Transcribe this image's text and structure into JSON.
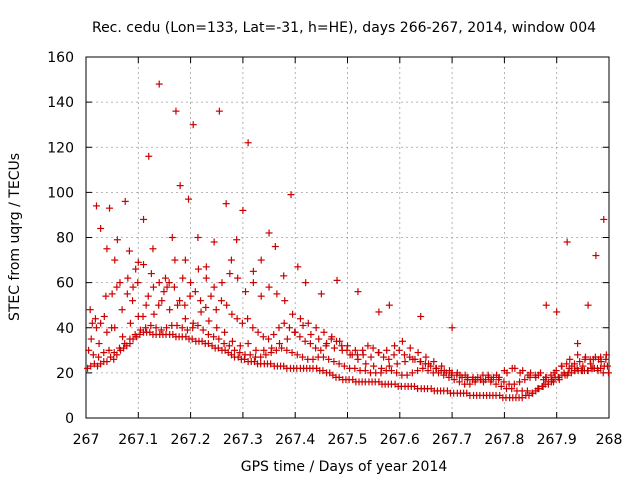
{
  "chart_data": {
    "type": "scatter",
    "title": "Rec. cedu (Lon=133, Lat=-31, h=HE), days 266-267, 2014, window 004",
    "xlabel": "GPS time / Days of year 2014",
    "ylabel": "STEC from uqrg / TECUs",
    "xlim": [
      267,
      268
    ],
    "ylim": [
      0,
      160
    ],
    "x_ticks": [
      267,
      267.1,
      267.2,
      267.3,
      267.4,
      267.5,
      267.6,
      267.7,
      267.8,
      267.9,
      268
    ],
    "x_tick_labels": [
      "267",
      "267.1",
      "267.2",
      "267.3",
      "267.4",
      "267.5",
      "267.6",
      "267.7",
      "267.8",
      "267.9",
      "268"
    ],
    "y_ticks": [
      0,
      20,
      40,
      60,
      80,
      100,
      120,
      140,
      160
    ],
    "y_tick_labels": [
      "0",
      "20",
      "40",
      "60",
      "80",
      "100",
      "120",
      "140",
      "160"
    ],
    "grid": true,
    "marker": "plus",
    "color": "#cc0000",
    "series": [
      {
        "x": [
          267.003,
          267.009,
          267.016,
          267.022,
          267.028,
          267.034,
          267.04,
          267.047,
          267.053,
          267.059,
          267.066,
          267.072,
          267.078,
          267.084,
          267.09,
          267.097,
          267.103,
          267.11,
          267.116,
          267.122,
          267.128,
          267.134,
          267.141,
          267.147,
          267.153,
          267.16,
          267.166,
          267.172,
          267.178,
          267.184,
          267.191,
          267.197,
          267.203,
          267.21,
          267.216,
          267.222,
          267.228,
          267.234,
          267.241,
          267.247,
          267.253,
          267.26,
          267.266,
          267.272,
          267.278,
          267.284,
          267.291,
          267.297,
          267.303,
          267.31,
          267.316,
          267.322,
          267.328,
          267.334,
          267.341,
          267.347,
          267.353,
          267.36,
          267.366,
          267.372,
          267.378,
          267.384,
          267.391,
          267.397,
          267.403,
          267.41,
          267.416,
          267.422,
          267.428,
          267.434,
          267.441,
          267.447,
          267.453,
          267.46,
          267.466,
          267.472,
          267.478,
          267.484,
          267.491,
          267.497,
          267.503,
          267.51,
          267.516,
          267.522,
          267.528,
          267.534,
          267.541,
          267.547,
          267.553,
          267.56,
          267.566,
          267.572,
          267.578,
          267.584,
          267.591,
          267.597,
          267.603,
          267.61,
          267.616,
          267.622,
          267.628,
          267.634,
          267.641,
          267.647,
          267.653,
          267.66,
          267.666,
          267.672,
          267.678,
          267.684,
          267.691,
          267.697,
          267.703,
          267.71,
          267.716,
          267.722,
          267.728,
          267.734,
          267.741,
          267.747,
          267.753,
          267.76,
          267.766,
          267.772,
          267.778,
          267.784,
          267.791,
          267.797,
          267.803,
          267.81,
          267.816,
          267.822,
          267.828,
          267.834,
          267.841,
          267.847,
          267.853,
          267.86,
          267.866,
          267.872,
          267.878,
          267.884,
          267.891,
          267.897,
          267.903,
          267.91,
          267.916,
          267.922,
          267.928,
          267.934,
          267.941,
          267.947,
          267.953,
          267.96,
          267.966,
          267.972,
          267.978,
          267.984,
          267.991,
          267.997
        ],
        "y": [
          22,
          23,
          24,
          23,
          24,
          25,
          25,
          27,
          26,
          28,
          30,
          31,
          32,
          33,
          35,
          36,
          37,
          38,
          38,
          38,
          37,
          37,
          37,
          37,
          37,
          37,
          37,
          36,
          36,
          36,
          36,
          35,
          35,
          34,
          34,
          34,
          33,
          33,
          32,
          31,
          31,
          30,
          30,
          29,
          28,
          27,
          27,
          26,
          26,
          25,
          25,
          25,
          24,
          24,
          24,
          24,
          24,
          23,
          23,
          23,
          23,
          22,
          22,
          22,
          22,
          22,
          22,
          22,
          22,
          22,
          22,
          21,
          21,
          20,
          20,
          19,
          18,
          18,
          17,
          17,
          17,
          17,
          16,
          16,
          16,
          16,
          16,
          16,
          16,
          16,
          15,
          15,
          15,
          15,
          15,
          14,
          14,
          14,
          14,
          14,
          14,
          13,
          13,
          13,
          13,
          13,
          12,
          12,
          12,
          12,
          12,
          11,
          11,
          11,
          11,
          11,
          11,
          10,
          10,
          10,
          10,
          10,
          10,
          10,
          10,
          10,
          10,
          9,
          9,
          9,
          9,
          9,
          9,
          9,
          10,
          10,
          11,
          12,
          13,
          14,
          15,
          16,
          17,
          18,
          18,
          19,
          19,
          20,
          20,
          21,
          21,
          21,
          21,
          21,
          22,
          22,
          22,
          22,
          23,
          23
        ]
      },
      {
        "x": [
          267.005,
          267.014,
          267.024,
          267.034,
          267.044,
          267.054,
          267.064,
          267.074,
          267.084,
          267.094,
          267.104,
          267.114,
          267.124,
          267.134,
          267.144,
          267.154,
          267.164,
          267.174,
          267.184,
          267.194,
          267.204,
          267.214,
          267.224,
          267.234,
          267.244,
          267.254,
          267.264,
          267.274,
          267.284,
          267.294,
          267.304,
          267.314,
          267.324,
          267.334,
          267.344,
          267.354,
          267.364,
          267.374,
          267.384,
          267.394,
          267.404,
          267.414,
          267.424,
          267.434,
          267.444,
          267.454,
          267.464,
          267.474,
          267.484,
          267.494,
          267.504,
          267.514,
          267.524,
          267.534,
          267.544,
          267.554,
          267.564,
          267.574,
          267.584,
          267.594,
          267.604,
          267.614,
          267.624,
          267.634,
          267.644,
          267.654,
          267.664,
          267.674,
          267.684,
          267.694,
          267.704,
          267.714,
          267.724,
          267.734,
          267.744,
          267.754,
          267.764,
          267.774,
          267.784,
          267.794,
          267.804,
          267.814,
          267.824,
          267.834,
          267.844,
          267.854,
          267.864,
          267.874,
          267.884,
          267.894,
          267.904,
          267.914,
          267.924,
          267.934,
          267.944,
          267.954,
          267.964,
          267.974,
          267.984,
          267.994
        ],
        "y": [
          30,
          28,
          27,
          29,
          30,
          29,
          31,
          33,
          35,
          37,
          39,
          40,
          41,
          40,
          39,
          40,
          41,
          41,
          40,
          39,
          40,
          41,
          39,
          37,
          36,
          35,
          33,
          32,
          30,
          29,
          28,
          28,
          27,
          27,
          28,
          29,
          30,
          31,
          30,
          29,
          28,
          27,
          26,
          26,
          27,
          27,
          26,
          25,
          24,
          23,
          22,
          22,
          21,
          21,
          20,
          20,
          20,
          21,
          21,
          20,
          19,
          19,
          20,
          21,
          22,
          21,
          20,
          20,
          19,
          18,
          17,
          16,
          15,
          15,
          16,
          17,
          17,
          16,
          15,
          14,
          13,
          13,
          12,
          12,
          12,
          11,
          13,
          14,
          15,
          16,
          18,
          20,
          22,
          24,
          25,
          26,
          26,
          27,
          27,
          26
        ]
      },
      {
        "x": [
          267.01,
          267.025,
          267.04,
          267.055,
          267.07,
          267.085,
          267.1,
          267.115,
          267.13,
          267.145,
          267.16,
          267.175,
          267.19,
          267.205,
          267.22,
          267.235,
          267.25,
          267.265,
          267.28,
          267.295,
          267.31,
          267.325,
          267.34,
          267.355,
          267.37,
          267.385,
          267.4,
          267.415,
          267.43,
          267.445,
          267.46,
          267.475,
          267.49,
          267.505,
          267.52,
          267.535,
          267.55,
          267.565,
          267.58,
          267.595,
          267.61,
          267.625,
          267.64,
          267.655,
          267.67,
          267.685,
          267.7,
          267.715,
          267.73,
          267.745,
          267.76,
          267.775,
          267.79,
          267.805,
          267.82,
          267.835,
          267.85,
          267.865,
          267.88,
          267.895,
          267.91,
          267.925,
          267.94,
          267.955,
          267.97,
          267.985
        ],
        "y": [
          35,
          33,
          38,
          40,
          36,
          42,
          45,
          50,
          46,
          52,
          48,
          50,
          44,
          42,
          47,
          43,
          40,
          38,
          34,
          32,
          33,
          30,
          30,
          31,
          33,
          35,
          38,
          41,
          37,
          35,
          33,
          31,
          30,
          28,
          26,
          24,
          23,
          22,
          23,
          24,
          25,
          26,
          25,
          24,
          22,
          21,
          20,
          19,
          18,
          17,
          16,
          17,
          18,
          20,
          22,
          21,
          20,
          19,
          18,
          20,
          23,
          26,
          28,
          27,
          26,
          25
        ]
      },
      {
        "x": [
          267.008,
          267.018,
          267.028,
          267.038,
          267.049,
          267.059,
          267.069,
          267.079,
          267.089,
          267.099,
          267.109,
          267.119,
          267.129,
          267.139,
          267.149,
          267.159,
          267.169,
          267.179,
          267.189,
          267.199,
          267.209,
          267.219,
          267.229,
          267.239,
          267.249,
          267.259,
          267.269,
          267.279,
          267.289,
          267.299,
          267.309,
          267.319,
          267.329,
          267.339,
          267.349,
          267.359,
          267.369,
          267.379,
          267.389,
          267.399,
          267.409,
          267.419,
          267.429,
          267.439,
          267.449,
          267.459,
          267.469,
          267.479,
          267.489,
          267.499,
          267.509,
          267.519,
          267.529,
          267.539,
          267.549,
          267.559,
          267.569,
          267.579,
          267.589,
          267.599,
          267.609,
          267.619,
          267.629,
          267.639,
          267.649,
          267.659,
          267.669,
          267.679,
          267.689,
          267.699,
          267.709,
          267.719,
          267.729,
          267.739,
          267.749,
          267.759,
          267.769,
          267.779,
          267.789,
          267.799,
          267.809,
          267.819,
          267.829,
          267.839,
          267.849,
          267.859,
          267.869,
          267.879,
          267.889,
          267.899,
          267.909,
          267.919,
          267.929,
          267.939,
          267.949,
          267.959,
          267.969,
          267.979,
          267.989,
          267.999
        ],
        "y": [
          48,
          44,
          42,
          54,
          40,
          58,
          48,
          55,
          52,
          60,
          45,
          54,
          58,
          50,
          56,
          60,
          58,
          52,
          50,
          54,
          56,
          52,
          49,
          54,
          48,
          52,
          50,
          46,
          44,
          42,
          44,
          40,
          38,
          36,
          35,
          37,
          40,
          42,
          40,
          38,
          36,
          34,
          33,
          31,
          30,
          32,
          35,
          34,
          32,
          30,
          28,
          28,
          30,
          32,
          31,
          29,
          27,
          26,
          28,
          30,
          28,
          27,
          26,
          25,
          24,
          23,
          22,
          21,
          20,
          19,
          19,
          18,
          17,
          17,
          18,
          19,
          19,
          18,
          17,
          16,
          15,
          15,
          16,
          17,
          18,
          19,
          20,
          18,
          19,
          21,
          23,
          24,
          23,
          22,
          21,
          21,
          22,
          21,
          20,
          20
        ]
      },
      {
        "x": [
          267.012,
          267.02,
          267.035,
          267.05,
          267.065,
          267.08,
          267.095,
          267.11,
          267.125,
          267.14,
          267.155,
          267.17,
          267.185,
          267.2,
          267.215,
          267.23,
          267.245,
          267.26,
          267.275,
          267.29,
          267.305,
          267.32,
          267.335,
          267.35,
          267.365,
          267.38,
          267.395,
          267.41,
          267.425,
          267.44,
          267.455,
          267.47,
          267.485,
          267.5,
          267.515,
          267.53,
          267.545,
          267.56,
          267.575,
          267.59,
          267.605,
          267.62,
          267.635,
          267.65,
          267.665,
          267.68,
          267.695,
          267.71,
          267.725,
          267.74,
          267.755,
          267.77,
          267.785,
          267.8,
          267.815,
          267.83,
          267.845,
          267.86,
          267.875,
          267.89,
          267.905,
          267.92,
          267.935,
          267.95,
          267.965,
          267.98,
          267.995
        ],
        "y": [
          42,
          40,
          45,
          55,
          60,
          62,
          66,
          68,
          64,
          60,
          58,
          70,
          62,
          60,
          66,
          62,
          58,
          60,
          64,
          62,
          56,
          60,
          54,
          58,
          55,
          52,
          46,
          44,
          42,
          40,
          38,
          36,
          34,
          32,
          30,
          28,
          27,
          29,
          30,
          32,
          34,
          31,
          29,
          27,
          25,
          23,
          21,
          20,
          19,
          18,
          17,
          18,
          19,
          21,
          22,
          20,
          19,
          18,
          17,
          16,
          17,
          19,
          21,
          23,
          24,
          26,
          28
        ]
      },
      {
        "x": [
          267.02,
          267.028,
          267.04,
          267.045,
          267.055,
          267.06,
          267.075,
          267.083,
          267.09,
          267.1,
          267.11,
          267.12,
          267.128,
          267.14,
          267.152,
          267.165,
          267.172,
          267.18,
          267.19,
          267.196,
          267.205,
          267.214,
          267.23,
          267.245,
          267.255,
          267.268,
          267.278,
          267.288,
          267.3,
          267.31,
          267.32,
          267.335,
          267.35,
          267.362,
          267.378,
          267.392,
          267.405,
          267.42,
          267.45,
          267.48,
          267.52,
          267.56,
          267.58,
          267.64,
          267.7,
          267.88,
          267.9,
          267.92,
          267.94,
          267.96,
          267.975,
          267.99
        ],
        "y": [
          94,
          84,
          75,
          93,
          70,
          79,
          96,
          74,
          58,
          69,
          88,
          116,
          75,
          148,
          62,
          80,
          136,
          103,
          70,
          97,
          130,
          80,
          67,
          78,
          136,
          95,
          70,
          79,
          92,
          122,
          65,
          70,
          82,
          76,
          63,
          99,
          67,
          60,
          55,
          61,
          56,
          47,
          50,
          45,
          40,
          50,
          47,
          78,
          33,
          50,
          72,
          88
        ]
      }
    ]
  }
}
